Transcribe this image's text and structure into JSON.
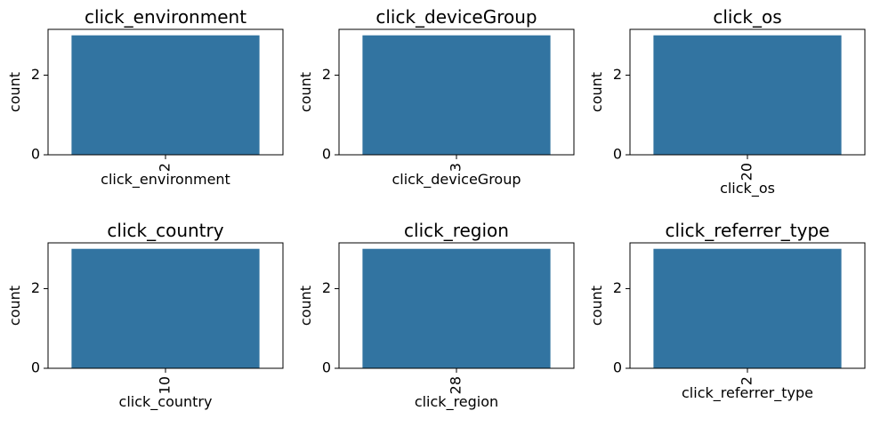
{
  "colors": {
    "bar": "#3274a1",
    "axis": "#000000",
    "background": "#ffffff"
  },
  "chart_data": [
    {
      "type": "bar",
      "title": "click_environment",
      "xlabel": "click_environment",
      "ylabel": "count",
      "categories": [
        "2"
      ],
      "values": [
        3
      ],
      "yticks": [
        "0",
        "2"
      ],
      "ylim": [
        0,
        3.15
      ]
    },
    {
      "type": "bar",
      "title": "click_deviceGroup",
      "xlabel": "click_deviceGroup",
      "ylabel": "count",
      "categories": [
        "3"
      ],
      "values": [
        3
      ],
      "yticks": [
        "0",
        "2"
      ],
      "ylim": [
        0,
        3.15
      ]
    },
    {
      "type": "bar",
      "title": "click_os",
      "xlabel": "click_os",
      "ylabel": "count",
      "categories": [
        "20"
      ],
      "values": [
        3
      ],
      "yticks": [
        "0",
        "2"
      ],
      "ylim": [
        0,
        3.15
      ]
    },
    {
      "type": "bar",
      "title": "click_country",
      "xlabel": "click_country",
      "ylabel": "count",
      "categories": [
        "10"
      ],
      "values": [
        3
      ],
      "yticks": [
        "0",
        "2"
      ],
      "ylim": [
        0,
        3.15
      ]
    },
    {
      "type": "bar",
      "title": "click_region",
      "xlabel": "click_region",
      "ylabel": "count",
      "categories": [
        "28"
      ],
      "values": [
        3
      ],
      "yticks": [
        "0",
        "2"
      ],
      "ylim": [
        0,
        3.15
      ]
    },
    {
      "type": "bar",
      "title": "click_referrer_type",
      "xlabel": "click_referrer_type",
      "ylabel": "count",
      "categories": [
        "2"
      ],
      "values": [
        3
      ],
      "yticks": [
        "0",
        "2"
      ],
      "ylim": [
        0,
        3.15
      ]
    }
  ]
}
